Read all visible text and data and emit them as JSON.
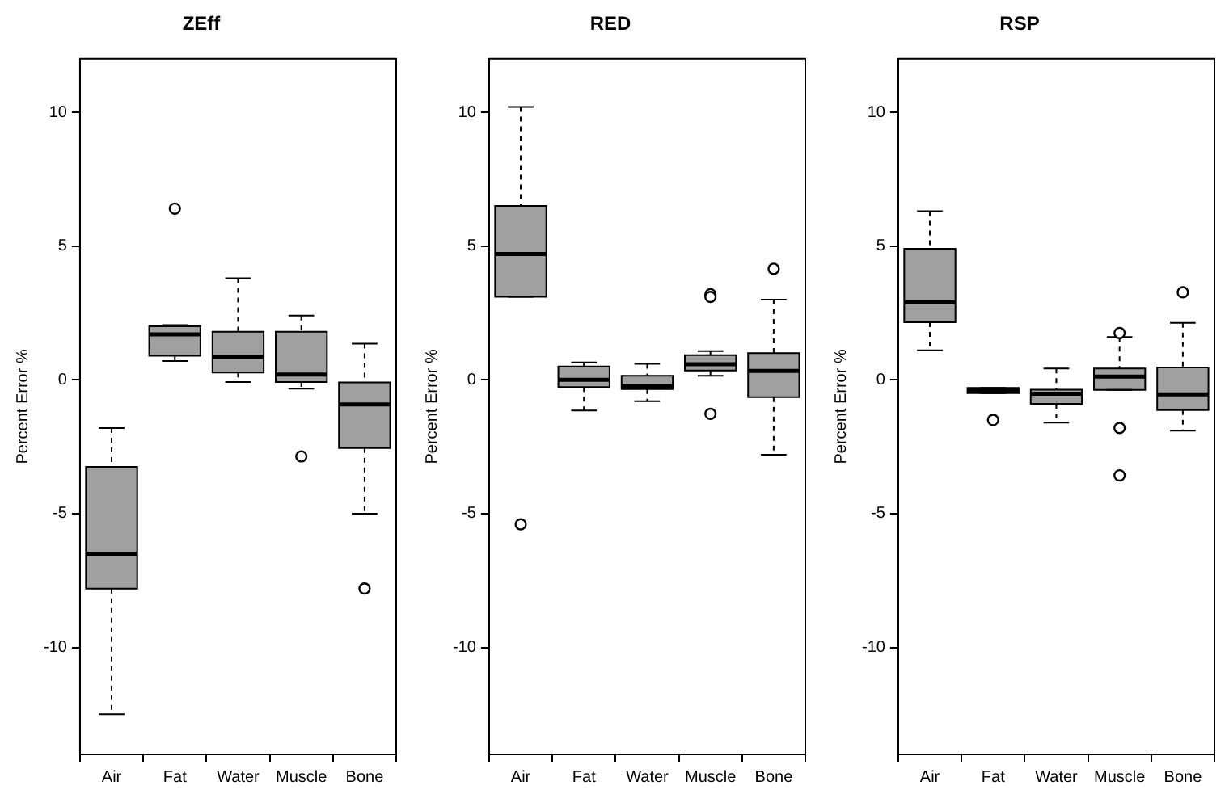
{
  "chart_data": [
    {
      "type": "box",
      "title": "ZEff",
      "ylabel": "Percent Error %",
      "categories": [
        "Air",
        "Fat",
        "Water",
        "Muscle",
        "Bone"
      ],
      "color": "#a0a0a0",
      "ylim": [
        -14,
        12
      ],
      "yticks": [
        -10,
        -5,
        0,
        5,
        10
      ],
      "grid": false,
      "boxes": [
        {
          "low": -12.5,
          "q1": -7.8,
          "median": -6.5,
          "q3": -3.25,
          "high": -1.8
        },
        {
          "low": 0.7,
          "q1": 0.9,
          "median": 1.7,
          "q3": 2.0,
          "high": 2.05,
          "outliers": [
            6.4
          ]
        },
        {
          "low": -0.08,
          "q1": 0.27,
          "median": 0.85,
          "q3": 1.8,
          "high": 3.8
        },
        {
          "low": -0.33,
          "q1": -0.08,
          "median": 0.2,
          "q3": 1.8,
          "high": 2.4,
          "outliers": [
            -2.86
          ]
        },
        {
          "low": -5.0,
          "q1": -2.55,
          "median": -0.92,
          "q3": -0.1,
          "high": 1.35,
          "outliers": [
            -7.8
          ]
        }
      ]
    },
    {
      "type": "box",
      "title": "RED",
      "ylabel": "Percent Error %",
      "categories": [
        "Air",
        "Fat",
        "Water",
        "Muscle",
        "Bone"
      ],
      "color": "#a0a0a0",
      "ylim": [
        -14,
        12
      ],
      "yticks": [
        -10,
        -5,
        0,
        5,
        10
      ],
      "grid": false,
      "boxes": [
        {
          "low": 3.1,
          "q1": 3.1,
          "median": 4.7,
          "q3": 6.5,
          "high": 10.2,
          "outliers": [
            -5.4
          ]
        },
        {
          "low": -1.15,
          "q1": -0.27,
          "median": 0.0,
          "q3": 0.5,
          "high": 0.65
        },
        {
          "low": -0.8,
          "q1": -0.35,
          "median": -0.23,
          "q3": 0.15,
          "high": 0.6
        },
        {
          "low": 0.15,
          "q1": 0.35,
          "median": 0.58,
          "q3": 0.92,
          "high": 1.07,
          "outliers": [
            3.2,
            3.1,
            -1.27
          ]
        },
        {
          "low": -2.8,
          "q1": -0.65,
          "median": 0.33,
          "q3": 1.0,
          "high": 3.0,
          "outliers": [
            4.15
          ]
        }
      ]
    },
    {
      "type": "box",
      "title": "RSP",
      "ylabel": "Percent Error %",
      "categories": [
        "Air",
        "Fat",
        "Water",
        "Muscle",
        "Bone"
      ],
      "color": "#a0a0a0",
      "ylim": [
        -14,
        12
      ],
      "yticks": [
        -10,
        -5,
        0,
        5,
        10
      ],
      "grid": false,
      "boxes": [
        {
          "low": 1.1,
          "q1": 2.15,
          "median": 2.9,
          "q3": 4.9,
          "high": 6.3
        },
        {
          "low": -0.5,
          "q1": -0.5,
          "median": -0.4,
          "q3": -0.3,
          "high": -0.3,
          "outliers": [
            -1.5
          ]
        },
        {
          "low": -1.6,
          "q1": -0.9,
          "median": -0.52,
          "q3": -0.37,
          "high": 0.42
        },
        {
          "low": -0.38,
          "q1": -0.38,
          "median": 0.12,
          "q3": 0.42,
          "high": 1.6,
          "outliers": [
            1.75,
            -1.8,
            -3.57
          ]
        },
        {
          "low": -1.9,
          "q1": -1.13,
          "median": -0.54,
          "q3": 0.46,
          "high": 2.13,
          "outliers": [
            3.27
          ]
        }
      ]
    }
  ]
}
